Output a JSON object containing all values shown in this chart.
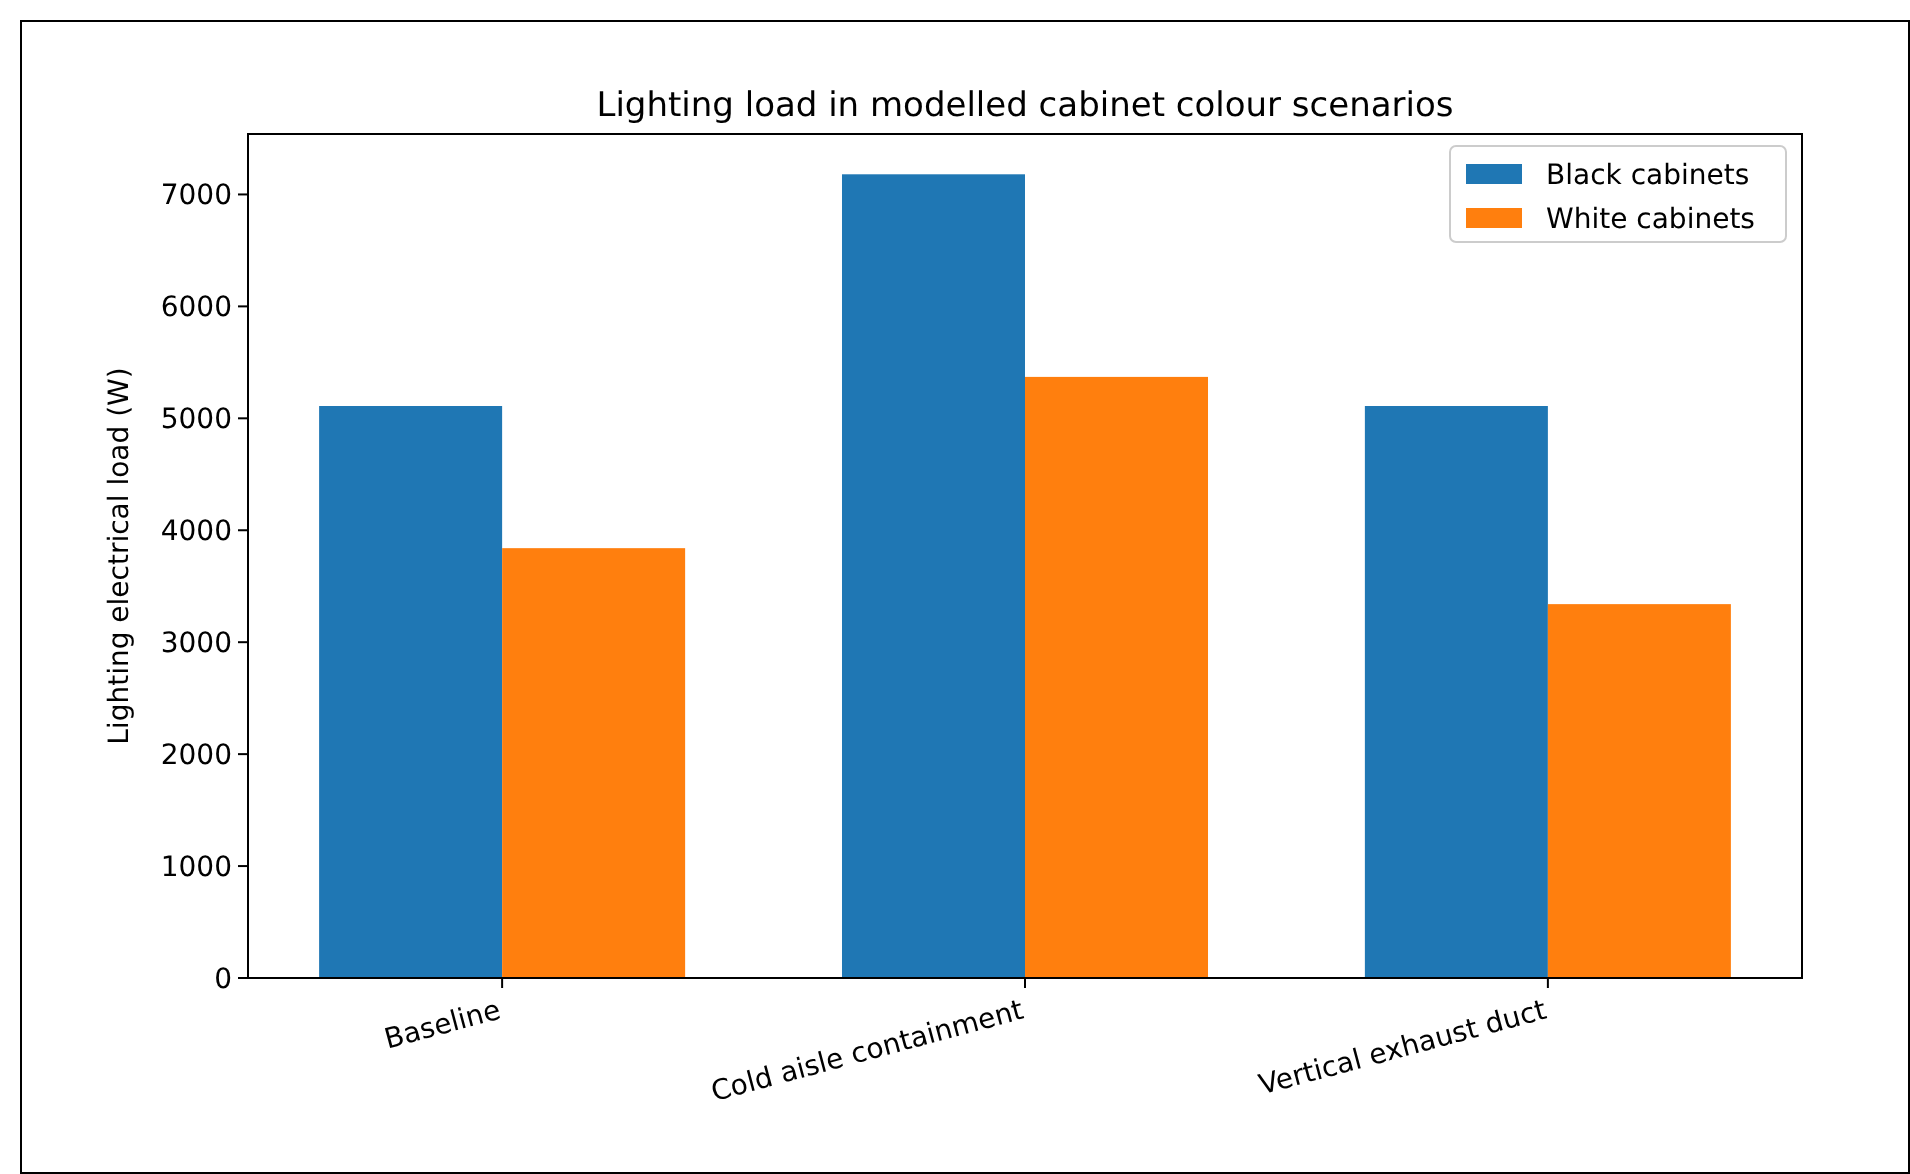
{
  "chart_data": {
    "type": "bar",
    "title": "Lighting load in modelled cabinet colour scenarios",
    "ylabel": "Lighting electrical load (W)",
    "categories": [
      "Baseline",
      "Cold aisle containment",
      "Vertical exhaust duct"
    ],
    "series": [
      {
        "name": "Black cabinets",
        "color": "#1f77b4",
        "values": [
          5110,
          7180,
          5110
        ]
      },
      {
        "name": "White cabinets",
        "color": "#ff7f0e",
        "values": [
          3840,
          5370,
          3340
        ]
      }
    ],
    "ylim": [
      0,
      7540
    ],
    "yticks": [
      0,
      1000,
      2000,
      3000,
      4000,
      5000,
      6000,
      7000
    ],
    "grid": false,
    "legend": "top right"
  }
}
